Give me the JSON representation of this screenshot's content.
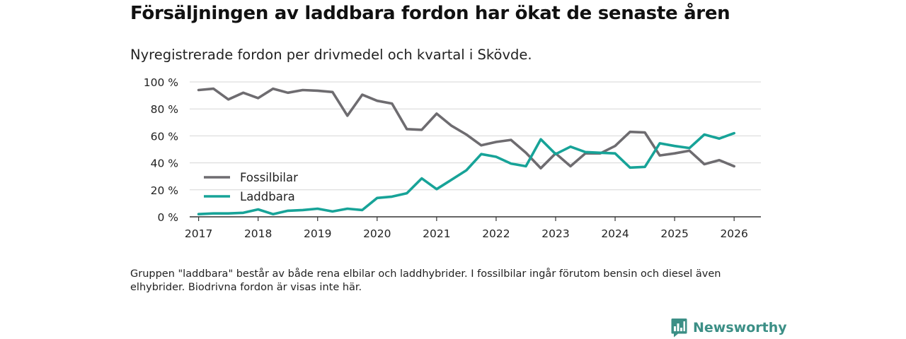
{
  "title": "Försäljningen av laddbara fordon har ökat de senaste åren",
  "subtitle": "Nyregistrerade fordon per drivmedel och kvartal i Skövde.",
  "footnote": "Gruppen \"laddbara\" består av både rena elbilar och laddhybrider. I fossilbilar ingår förutom bensin och diesel även elhybrider. Biodrivna fordon är visas inte här.",
  "brand": {
    "name": "Newsworthy",
    "icon": "newsworthy-bar-chart-icon",
    "color": "#3c8f86"
  },
  "colors": {
    "grid": "#d6d6d6",
    "axis": "#333333",
    "tick_text": "#222222"
  },
  "chart_data": {
    "type": "line",
    "title": "Försäljningen av laddbara fordon har ökat de senaste åren",
    "subtitle": "Nyregistrerade fordon per drivmedel och kvartal i Skövde.",
    "xlabel": "",
    "ylabel": "",
    "xlim": [
      2016.85,
      2026.45
    ],
    "ylim": [
      0,
      100
    ],
    "x_ticks": [
      2017,
      2018,
      2019,
      2020,
      2021,
      2022,
      2023,
      2024,
      2025,
      2026
    ],
    "x_tick_labels": [
      "2017",
      "2018",
      "2019",
      "2020",
      "2021",
      "2022",
      "2023",
      "2024",
      "2025",
      "2026"
    ],
    "y_ticks": [
      0,
      20,
      40,
      60,
      80,
      100
    ],
    "y_tick_labels": [
      "0 %",
      "20 %",
      "40 %",
      "60 %",
      "80 %",
      "100 %"
    ],
    "grid": true,
    "legend_position": "left",
    "x": [
      2017.0,
      2017.25,
      2017.5,
      2017.75,
      2018.0,
      2018.25,
      2018.5,
      2018.75,
      2019.0,
      2019.25,
      2019.5,
      2019.75,
      2020.0,
      2020.25,
      2020.5,
      2020.75,
      2021.0,
      2021.25,
      2021.5,
      2021.75,
      2022.0,
      2022.25,
      2022.5,
      2022.75,
      2023.0,
      2023.25,
      2023.5,
      2023.75,
      2024.0,
      2024.25,
      2024.5,
      2024.75,
      2025.0,
      2025.25,
      2025.5,
      2025.75,
      2026.0
    ],
    "series": [
      {
        "name": "Fossilbilar",
        "color": "#6e6c70",
        "values": [
          94,
          95,
          87,
          92,
          88,
          95,
          92,
          94,
          93.5,
          92.5,
          75,
          90.5,
          86,
          84,
          65,
          64.5,
          76.5,
          67.5,
          61,
          53,
          55.5,
          57,
          47.5,
          36,
          47,
          37.5,
          47,
          47,
          52.5,
          63,
          62.5,
          45.5,
          47,
          49,
          39,
          42,
          37.5
        ]
      },
      {
        "name": "Laddbara",
        "color": "#17a398",
        "values": [
          2,
          2.5,
          2.5,
          3,
          5.5,
          2,
          4.5,
          5,
          6,
          4,
          6,
          5,
          14,
          15,
          17.5,
          28.5,
          20.5,
          27.5,
          34.5,
          46.5,
          44.5,
          39.5,
          37.5,
          57.5,
          46.5,
          52,
          48,
          47.5,
          47,
          36.5,
          37,
          54.5,
          52.5,
          51,
          61,
          58,
          62
        ]
      }
    ]
  }
}
